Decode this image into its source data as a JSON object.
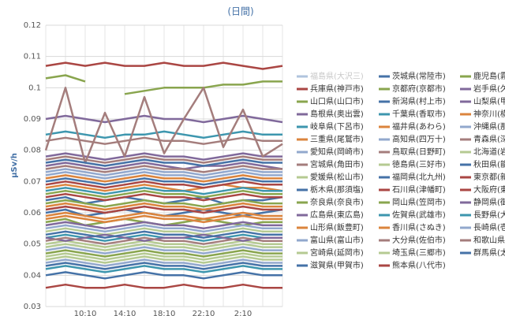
{
  "chart_data": {
    "type": "line",
    "title": "(日間)",
    "y_label": "μSv/h",
    "categories": [
      null,
      null,
      "10:10",
      null,
      "14:10",
      null,
      "18:10",
      null,
      "22:10",
      null,
      "2:10",
      null,
      null
    ],
    "ylim": [
      0.03,
      0.12
    ],
    "yticks": [
      0.03,
      0.04,
      0.05,
      0.06,
      0.07,
      0.08,
      0.09,
      0.1,
      0.11,
      0.12
    ],
    "grid": true,
    "legend": "right",
    "series": [
      {
        "name": "福島県(大沢三)",
        "color": "#b0c4de",
        "hidden": true,
        "values": [
          null,
          null,
          null,
          null,
          null,
          null,
          null,
          null,
          null,
          null,
          null,
          null,
          null
        ]
      },
      {
        "name": "茨城県(常陸市)",
        "color": "#4572A7",
        "values": [
          0.064,
          0.065,
          0.063,
          0.064,
          0.065,
          0.064,
          0.063,
          0.064,
          0.065,
          0.063,
          0.064,
          0.064,
          0.065
        ]
      },
      {
        "name": "鹿児島(霧島市)",
        "color": "#89A54E",
        "values": [
          0.103,
          0.104,
          0.102,
          null,
          0.098,
          0.099,
          0.1,
          0.1,
          0.1,
          0.101,
          0.101,
          0.102,
          0.102
        ]
      },
      {
        "name": "兵庫県(神戸市)",
        "color": "#AA4643",
        "values": [
          0.107,
          0.108,
          0.107,
          0.108,
          0.107,
          0.107,
          0.108,
          0.107,
          0.107,
          0.108,
          0.107,
          0.106,
          0.107
        ]
      },
      {
        "name": "京都府(京都市)",
        "color": "#89A54E",
        "values": [
          0.057,
          0.058,
          0.056,
          0.057,
          0.058,
          0.057,
          0.056,
          0.057,
          0.058,
          0.057,
          0.056,
          0.057,
          0.057
        ]
      },
      {
        "name": "岩手県(久慈市)",
        "color": "#80699B",
        "values": [
          0.09,
          0.091,
          0.09,
          0.089,
          0.09,
          0.091,
          0.09,
          0.09,
          0.089,
          0.09,
          0.091,
          0.09,
          0.089
        ]
      },
      {
        "name": "山口県(山口市)",
        "color": "#89A54E",
        "values": [
          0.066,
          0.067,
          0.066,
          0.065,
          0.066,
          0.067,
          0.066,
          0.066,
          0.065,
          0.066,
          0.067,
          0.066,
          0.066
        ]
      },
      {
        "name": "新潟県(村上市)",
        "color": "#4572A7",
        "values": [
          0.06,
          0.061,
          0.059,
          0.06,
          0.061,
          0.06,
          0.059,
          0.06,
          0.061,
          0.06,
          0.059,
          0.06,
          0.061
        ]
      },
      {
        "name": "山梨県(甲府市)",
        "color": "#80699B",
        "values": [
          0.075,
          0.076,
          0.075,
          0.074,
          0.075,
          0.076,
          0.075,
          0.074,
          0.075,
          0.075,
          0.076,
          0.075,
          0.074
        ]
      },
      {
        "name": "島根県(奥出雲)",
        "color": "#80699B",
        "values": [
          0.078,
          0.079,
          0.078,
          0.077,
          0.078,
          0.079,
          0.078,
          0.078,
          0.077,
          0.078,
          0.079,
          0.078,
          0.078
        ]
      },
      {
        "name": "千葉県(香取市)",
        "color": "#3D96AE",
        "values": [
          0.052,
          0.053,
          0.052,
          0.051,
          0.052,
          0.053,
          0.052,
          0.052,
          0.051,
          0.052,
          0.053,
          0.052,
          0.052
        ]
      },
      {
        "name": "神奈川(横浜市)",
        "color": "#DB843D",
        "values": [
          0.068,
          0.069,
          0.068,
          0.067,
          0.068,
          0.069,
          0.068,
          0.067,
          0.068,
          0.069,
          0.068,
          0.068,
          0.067
        ]
      },
      {
        "name": "岐阜県(下呂市)",
        "color": "#3D96AE",
        "values": [
          0.085,
          0.086,
          0.085,
          0.084,
          0.085,
          0.085,
          0.086,
          0.085,
          0.084,
          0.085,
          0.086,
          0.085,
          0.085
        ]
      },
      {
        "name": "福井県(あわら)",
        "color": "#DB843D",
        "values": [
          0.062,
          0.063,
          0.062,
          0.061,
          0.062,
          0.063,
          0.062,
          0.062,
          0.061,
          0.062,
          0.063,
          0.062,
          0.062
        ]
      },
      {
        "name": "沖縄県(那覇市)",
        "color": "#92A8CD",
        "values": [
          0.048,
          0.049,
          0.048,
          0.047,
          0.048,
          0.049,
          0.048,
          0.048,
          0.047,
          0.048,
          0.049,
          0.048,
          0.048
        ]
      },
      {
        "name": "三重県(尾鷲市)",
        "color": "#DB843D",
        "values": [
          0.058,
          0.059,
          0.058,
          0.057,
          0.058,
          0.059,
          0.058,
          0.058,
          0.057,
          0.058,
          0.059,
          0.058,
          0.058
        ]
      },
      {
        "name": "高知県(四万十)",
        "color": "#92A8CD",
        "values": [
          0.055,
          0.056,
          0.055,
          0.054,
          0.055,
          0.056,
          0.055,
          0.055,
          0.054,
          0.055,
          0.056,
          0.055,
          0.055
        ]
      },
      {
        "name": "青森県(深浦町)",
        "color": "#A47D7C",
        "values": [
          0.08,
          0.1,
          0.076,
          0.092,
          0.078,
          0.097,
          0.079,
          0.09,
          0.1,
          0.081,
          0.093,
          0.078,
          0.082
        ]
      },
      {
        "name": "愛知県(岡崎市)",
        "color": "#92A8CD",
        "values": [
          0.073,
          0.074,
          0.073,
          0.072,
          0.073,
          0.074,
          0.073,
          0.073,
          0.072,
          0.073,
          0.074,
          0.073,
          0.073
        ]
      },
      {
        "name": "鳥取県(日野町)",
        "color": "#A47D7C",
        "values": [
          0.077,
          0.078,
          0.077,
          0.076,
          0.077,
          0.078,
          0.077,
          0.077,
          0.076,
          0.077,
          0.078,
          0.077,
          0.077
        ]
      },
      {
        "name": "北海道(岩見沢)",
        "color": "#B5CA92",
        "values": [
          0.045,
          0.046,
          0.045,
          0.044,
          0.045,
          0.046,
          0.045,
          0.045,
          0.044,
          0.045,
          0.046,
          0.045,
          0.045
        ]
      },
      {
        "name": "宮城県(角田市)",
        "color": "#A47D7C",
        "values": [
          0.083,
          0.084,
          0.083,
          0.082,
          0.083,
          0.084,
          0.083,
          0.083,
          0.082,
          0.083,
          0.084,
          0.083,
          0.083
        ]
      },
      {
        "name": "徳島県(三好市)",
        "color": "#B5CA92",
        "values": [
          0.05,
          0.051,
          0.05,
          0.049,
          0.05,
          0.051,
          0.05,
          0.05,
          0.049,
          0.05,
          0.051,
          0.05,
          0.05
        ]
      },
      {
        "name": "秋田県(能代市)",
        "color": "#4572A7",
        "values": [
          0.076,
          0.077,
          0.076,
          0.075,
          0.076,
          0.077,
          0.076,
          0.076,
          0.075,
          0.076,
          0.077,
          0.076,
          0.076
        ]
      },
      {
        "name": "愛媛県(松山市)",
        "color": "#B5CA92",
        "values": [
          0.054,
          0.055,
          0.054,
          0.053,
          0.054,
          0.055,
          0.054,
          0.054,
          0.053,
          0.054,
          0.055,
          0.054,
          0.054
        ]
      },
      {
        "name": "福岡県(北九州)",
        "color": "#4572A7",
        "values": [
          0.04,
          0.041,
          0.04,
          0.039,
          0.04,
          0.041,
          0.04,
          0.04,
          0.039,
          0.04,
          0.041,
          0.04,
          0.04
        ]
      },
      {
        "name": "東京都(新宿区)",
        "color": "#AA4643",
        "values": [
          0.036,
          0.037,
          0.036,
          0.036,
          0.037,
          0.036,
          0.036,
          0.037,
          0.036,
          0.036,
          0.037,
          0.036,
          0.036
        ]
      },
      {
        "name": "栃木県(那須塩)",
        "color": "#4572A7",
        "values": [
          0.07,
          0.071,
          0.07,
          0.069,
          0.07,
          0.071,
          0.07,
          0.07,
          0.069,
          0.07,
          0.071,
          0.07,
          0.07
        ]
      },
      {
        "name": "石川県(津幡町)",
        "color": "#AA4643",
        "values": [
          0.069,
          0.07,
          0.069,
          0.068,
          0.069,
          0.07,
          0.069,
          0.069,
          0.068,
          0.069,
          0.07,
          0.069,
          0.069
        ]
      },
      {
        "name": "大阪府(東大阪)",
        "color": "#AA4643",
        "values": [
          0.061,
          0.062,
          0.061,
          0.06,
          0.061,
          0.062,
          0.061,
          0.061,
          0.06,
          0.061,
          0.062,
          0.061,
          0.061
        ]
      },
      {
        "name": "奈良県(奈良市)",
        "color": "#89A54E",
        "values": [
          0.063,
          0.064,
          0.063,
          0.062,
          0.063,
          0.064,
          0.063,
          0.063,
          0.062,
          0.063,
          0.064,
          0.063,
          0.063
        ]
      },
      {
        "name": "岡山県(笠岡市)",
        "color": "#89A54E",
        "values": [
          0.047,
          0.048,
          0.047,
          0.046,
          0.047,
          0.048,
          0.047,
          0.047,
          0.046,
          0.047,
          0.048,
          0.047,
          0.047
        ]
      },
      {
        "name": "静岡県(御前崎)",
        "color": "#80699B",
        "values": [
          0.056,
          0.057,
          0.056,
          0.055,
          0.056,
          0.057,
          0.056,
          0.056,
          0.055,
          0.056,
          0.057,
          0.056,
          0.056
        ]
      },
      {
        "name": "広島県(東広島)",
        "color": "#80699B",
        "values": [
          0.052,
          0.051,
          0.052,
          0.053,
          0.052,
          0.051,
          0.052,
          0.052,
          0.053,
          0.052,
          0.051,
          0.052,
          0.052
        ]
      },
      {
        "name": "佐賀県(武雄市)",
        "color": "#3D96AE",
        "values": [
          0.067,
          0.068,
          0.067,
          0.066,
          0.067,
          0.068,
          0.067,
          0.067,
          0.066,
          0.067,
          0.068,
          0.067,
          0.067
        ]
      },
      {
        "name": "長野県(大町市)",
        "color": "#3D96AE",
        "values": [
          0.042,
          0.043,
          0.042,
          0.041,
          0.042,
          0.043,
          0.042,
          0.042,
          0.041,
          0.042,
          0.043,
          0.042,
          0.042
        ]
      },
      {
        "name": "山形県(飯豊町)",
        "color": "#DB843D",
        "values": [
          0.071,
          0.072,
          0.071,
          0.07,
          0.071,
          0.072,
          0.071,
          0.071,
          0.07,
          0.071,
          0.072,
          0.071,
          0.071
        ]
      },
      {
        "name": "香川県(さぬき)",
        "color": "#DB843D",
        "values": [
          0.059,
          0.06,
          0.059,
          0.058,
          0.059,
          0.06,
          0.059,
          0.059,
          0.058,
          0.059,
          0.06,
          0.059,
          0.059
        ]
      },
      {
        "name": "長崎県(壱岐市)",
        "color": "#92A8CD",
        "values": [
          0.044,
          0.045,
          0.044,
          0.043,
          0.044,
          0.045,
          0.044,
          0.044,
          0.043,
          0.044,
          0.045,
          0.044,
          0.044
        ]
      },
      {
        "name": "富山県(富山市)",
        "color": "#92A8CD",
        "values": [
          0.072,
          0.073,
          0.072,
          0.071,
          0.072,
          0.073,
          0.072,
          0.072,
          0.071,
          0.072,
          0.073,
          0.072,
          0.072
        ]
      },
      {
        "name": "大分県(佐伯市)",
        "color": "#A47D7C",
        "values": [
          0.051,
          0.052,
          0.051,
          0.05,
          0.051,
          0.052,
          0.051,
          0.051,
          0.05,
          0.051,
          0.052,
          0.051,
          0.051
        ]
      },
      {
        "name": "和歌山県(新宮市)",
        "color": "#A47D7C",
        "values": [
          0.074,
          0.075,
          0.074,
          0.073,
          0.074,
          0.075,
          0.074,
          0.074,
          0.073,
          0.074,
          0.075,
          0.074,
          0.074
        ]
      },
      {
        "name": "宮崎県(延岡市)",
        "color": "#B5CA92",
        "values": [
          0.049,
          0.05,
          0.049,
          0.048,
          0.049,
          0.05,
          0.049,
          0.049,
          0.048,
          0.049,
          0.05,
          0.049,
          0.049
        ]
      },
      {
        "name": "埼玉県(三郷市)",
        "color": "#B5CA92",
        "values": [
          0.046,
          0.047,
          0.046,
          0.045,
          0.046,
          0.047,
          0.046,
          0.046,
          0.045,
          0.046,
          0.047,
          0.046,
          0.046
        ]
      },
      {
        "name": "群馬県(太田市)",
        "color": "#4572A7",
        "values": [
          0.043,
          0.044,
          0.043,
          0.042,
          0.043,
          0.044,
          0.043,
          0.043,
          0.042,
          0.043,
          0.044,
          0.043,
          0.043
        ]
      },
      {
        "name": "滋賀県(甲賀市)",
        "color": "#4572A7",
        "values": [
          0.053,
          0.054,
          0.053,
          0.052,
          0.053,
          0.054,
          0.053,
          0.053,
          0.052,
          0.053,
          0.054,
          0.053,
          0.053
        ]
      },
      {
        "name": "熊本県(八代市)",
        "color": "#AA4643",
        "values": [
          0.065,
          0.066,
          0.065,
          0.064,
          0.065,
          0.066,
          0.065,
          0.065,
          0.064,
          0.065,
          0.066,
          0.065,
          0.065
        ]
      }
    ]
  }
}
